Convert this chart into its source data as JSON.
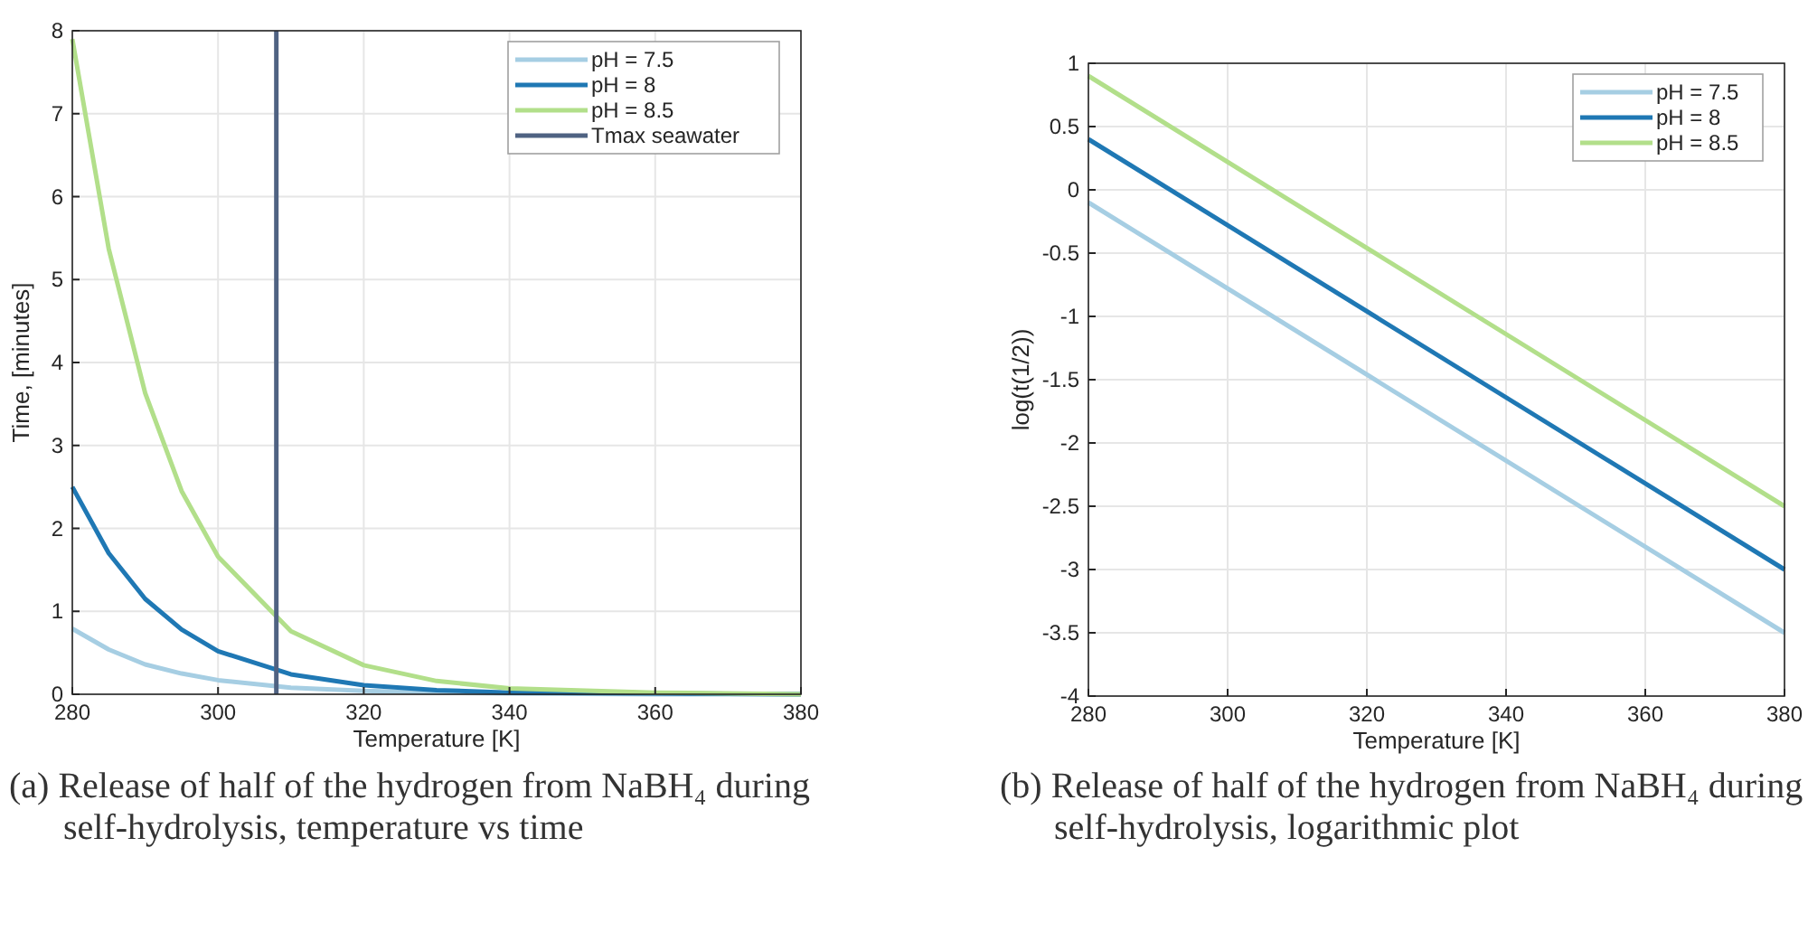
{
  "chart_data": [
    {
      "type": "line",
      "xlabel": "Temperature [K]",
      "ylabel": "Time, [minutes]",
      "xlim": [
        280,
        380
      ],
      "xticks": [
        280,
        300,
        320,
        340,
        360,
        380
      ],
      "ylim": [
        0,
        8
      ],
      "yticks": [
        0,
        1,
        2,
        3,
        4,
        5,
        6,
        7,
        8
      ],
      "grid": true,
      "legend": "top right",
      "x": [
        280,
        285,
        290,
        295,
        300,
        310,
        320,
        330,
        340,
        360,
        380
      ],
      "series": [
        {
          "name": "pH = 7.5",
          "color": "#a6cee3",
          "values": [
            0.79,
            0.54,
            0.36,
            0.25,
            0.17,
            0.08,
            0.04,
            0.02,
            0.01,
            0,
            0
          ]
        },
        {
          "name": "pH = 8",
          "color": "#1f78b4",
          "values": [
            2.5,
            1.7,
            1.15,
            0.78,
            0.52,
            0.24,
            0.11,
            0.05,
            0.02,
            0.01,
            0
          ]
        },
        {
          "name": "pH = 8.5",
          "color": "#b2df8a",
          "values": [
            7.9,
            5.37,
            3.63,
            2.45,
            1.66,
            0.76,
            0.35,
            0.16,
            0.07,
            0.02,
            0
          ]
        },
        {
          "name": "Tmax seawater",
          "color": "#4f6282",
          "x": [
            308,
            308
          ],
          "values": [
            0,
            8
          ]
        }
      ],
      "annotations": [
        "(a) Release of half of the hydrogen from NaBH₄ during self-hydrolysis, temperature vs time"
      ]
    },
    {
      "type": "line",
      "xlabel": "Temperature [K]",
      "ylabel": "log(t(1/2))",
      "xlim": [
        280,
        380
      ],
      "xticks": [
        280,
        300,
        320,
        340,
        360,
        380
      ],
      "ylim": [
        -4,
        1
      ],
      "yticks": [
        -4,
        -3.5,
        -3,
        -2.5,
        -2,
        -1.5,
        -1,
        -0.5,
        0,
        0.5,
        1
      ],
      "grid": true,
      "legend": "top right",
      "x": [
        280,
        380
      ],
      "series": [
        {
          "name": "pH = 7.5",
          "color": "#a6cee3",
          "values": [
            -0.1,
            -3.5
          ]
        },
        {
          "name": "pH = 8",
          "color": "#1f78b4",
          "values": [
            0.4,
            -3.0
          ]
        },
        {
          "name": "pH = 8.5",
          "color": "#b2df8a",
          "values": [
            0.9,
            -2.5
          ]
        }
      ],
      "annotations": [
        "(b) Release of half of the hydrogen from NaBH₄ during self-hydrolysis, logarithmic plot"
      ]
    }
  ]
}
